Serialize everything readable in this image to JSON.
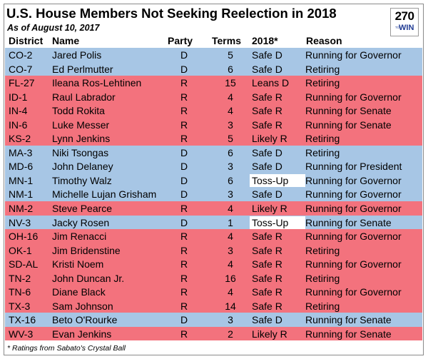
{
  "title": "U.S. House Members Not Seeking Reelection in 2018",
  "as_of": "As of August 10, 2017",
  "logo": {
    "number": "270",
    "to": "TO",
    "win": "WIN"
  },
  "headers": {
    "district": "District",
    "name": "Name",
    "party": "Party",
    "terms": "Terms",
    "rating": "2018*",
    "reason": "Reason"
  },
  "rows": [
    {
      "district": "CO-2",
      "name": "Jared Polis",
      "party": "D",
      "terms": "5",
      "rating": "Safe D",
      "reason": "Running for Governor"
    },
    {
      "district": "CO-7",
      "name": "Ed Perlmutter",
      "party": "D",
      "terms": "6",
      "rating": "Safe D",
      "reason": "Retiring"
    },
    {
      "district": "FL-27",
      "name": "Ileana Ros-Lehtinen",
      "party": "R",
      "terms": "15",
      "rating": "Leans D",
      "reason": "Retiring"
    },
    {
      "district": "ID-1",
      "name": "Raul Labrador",
      "party": "R",
      "terms": "4",
      "rating": "Safe R",
      "reason": "Running for Governor"
    },
    {
      "district": "IN-4",
      "name": "Todd Rokita",
      "party": "R",
      "terms": "4",
      "rating": "Safe R",
      "reason": "Running for Senate"
    },
    {
      "district": "IN-6",
      "name": "Luke Messer",
      "party": "R",
      "terms": "3",
      "rating": "Safe R",
      "reason": "Running for Senate"
    },
    {
      "district": "KS-2",
      "name": "Lynn Jenkins",
      "party": "R",
      "terms": "5",
      "rating": "Likely R",
      "reason": "Retiring"
    },
    {
      "district": "MA-3",
      "name": "Niki Tsongas",
      "party": "D",
      "terms": "6",
      "rating": "Safe D",
      "reason": "Retiring"
    },
    {
      "district": "MD-6",
      "name": "John Delaney",
      "party": "D",
      "terms": "3",
      "rating": "Safe D",
      "reason": "Running for President"
    },
    {
      "district": "MN-1",
      "name": "Timothy Walz",
      "party": "D",
      "terms": "6",
      "rating": "Toss-Up",
      "reason": "Running for Governor"
    },
    {
      "district": "NM-1",
      "name": "Michelle Lujan Grisham",
      "party": "D",
      "terms": "3",
      "rating": "Safe D",
      "reason": "Running for Governor"
    },
    {
      "district": "NM-2",
      "name": "Steve Pearce",
      "party": "R",
      "terms": "4",
      "rating": "Likely R",
      "reason": "Running for Governor"
    },
    {
      "district": "NV-3",
      "name": "Jacky Rosen",
      "party": "D",
      "terms": "1",
      "rating": "Toss-Up",
      "reason": "Running for Senate"
    },
    {
      "district": "OH-16",
      "name": "Jim Renacci",
      "party": "R",
      "terms": "4",
      "rating": "Safe R",
      "reason": "Running for Governor"
    },
    {
      "district": "OK-1",
      "name": "Jim Bridenstine",
      "party": "R",
      "terms": "3",
      "rating": "Safe R",
      "reason": "Retiring"
    },
    {
      "district": "SD-AL",
      "name": "Kristi Noem",
      "party": "R",
      "terms": "4",
      "rating": "Safe R",
      "reason": "Running for Governor"
    },
    {
      "district": "TN-2",
      "name": "John Duncan Jr.",
      "party": "R",
      "terms": "16",
      "rating": "Safe R",
      "reason": "Retiring"
    },
    {
      "district": "TN-6",
      "name": "Diane Black",
      "party": "R",
      "terms": "4",
      "rating": "Safe R",
      "reason": "Running for Governor"
    },
    {
      "district": "TX-3",
      "name": "Sam Johnson",
      "party": "R",
      "terms": "14",
      "rating": "Safe R",
      "reason": "Retiring"
    },
    {
      "district": "TX-16",
      "name": "Beto O'Rourke",
      "party": "D",
      "terms": "3",
      "rating": "Safe D",
      "reason": "Running for Senate"
    },
    {
      "district": "WV-3",
      "name": "Evan Jenkins",
      "party": "R",
      "terms": "2",
      "rating": "Likely R",
      "reason": "Running for Senate"
    }
  ],
  "footnote": "* Ratings from Sabato's Crystal Ball",
  "colors": {
    "democrat_row": "#a7c6e5",
    "republican_row": "#f3727d",
    "tossup_cell": "#ffffff"
  }
}
